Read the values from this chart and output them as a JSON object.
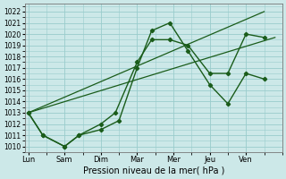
{
  "xlabel": "Pression niveau de la mer( hPa )",
  "background_color": "#cce8e8",
  "grid_color": "#99cccc",
  "line_color": "#1a5c1a",
  "ylim": [
    1009.5,
    1022.7
  ],
  "yticks": [
    1010,
    1011,
    1012,
    1013,
    1014,
    1015,
    1016,
    1017,
    1018,
    1019,
    1020,
    1021,
    1022
  ],
  "x_labels": [
    "Lun",
    "Sam",
    "Dim",
    "Mar",
    "Mer",
    "Jeu",
    "Ven"
  ],
  "x_ticks": [
    0,
    1,
    2,
    3,
    4,
    5,
    6
  ],
  "xlim": [
    -0.1,
    7.0
  ],
  "line1_x": [
    0,
    0.4,
    1.0,
    1.4,
    2.0,
    2.5,
    3.0,
    3.4,
    3.9,
    4.4,
    5.0,
    5.5,
    6.0,
    6.5
  ],
  "line1_y": [
    1013.0,
    1011.0,
    1010.0,
    1011.0,
    1011.5,
    1012.3,
    1017.0,
    1020.3,
    1021.0,
    1018.5,
    1015.5,
    1013.8,
    1016.5,
    1016.0
  ],
  "line2_x": [
    0,
    0.4,
    1.0,
    1.4,
    2.0,
    2.4,
    3.0,
    3.4,
    3.9,
    4.4,
    5.0,
    5.5,
    6.0,
    6.5
  ],
  "line2_y": [
    1013.0,
    1011.0,
    1010.0,
    1011.0,
    1012.0,
    1013.0,
    1017.5,
    1019.5,
    1019.5,
    1019.0,
    1016.5,
    1016.5,
    1020.0,
    1019.7
  ],
  "trend1_x": [
    0,
    6.8
  ],
  "trend1_y": [
    1013.0,
    1019.7
  ],
  "trend2_x": [
    0,
    6.5
  ],
  "trend2_y": [
    1013.0,
    1022.0
  ]
}
